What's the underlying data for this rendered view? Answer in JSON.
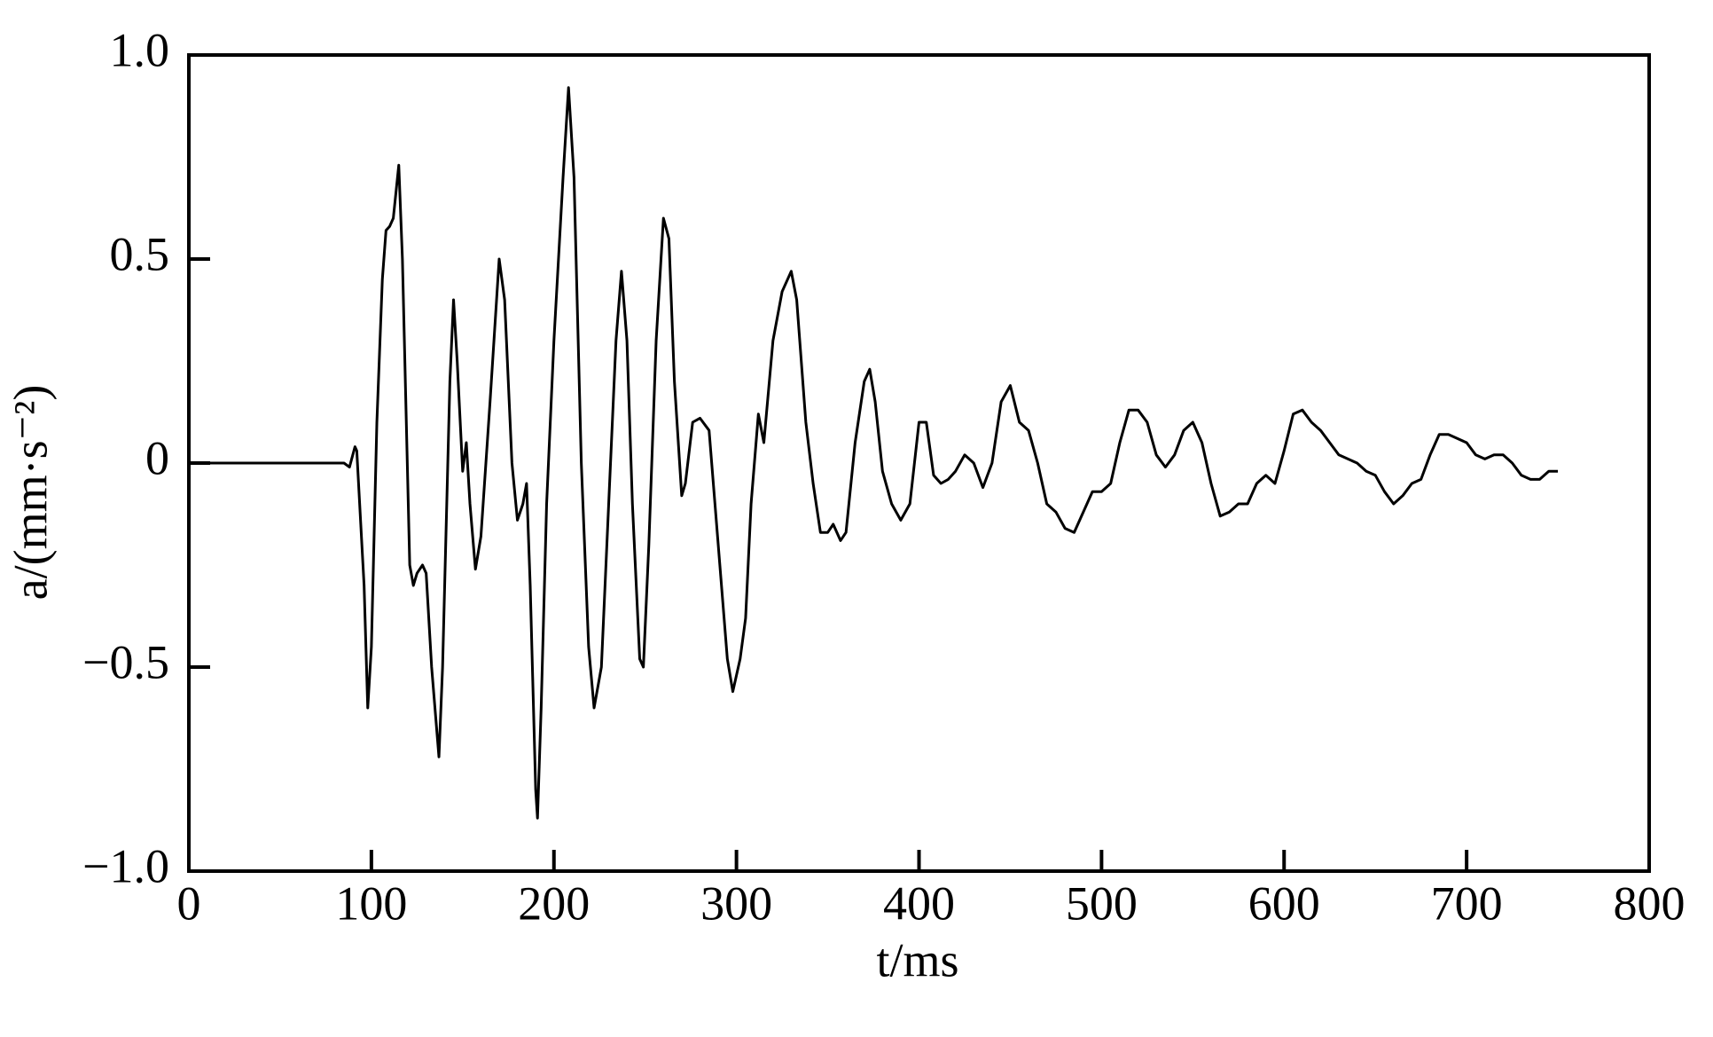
{
  "chart_data": {
    "type": "line",
    "xlabel": "t/ms",
    "ylabel": "a/(mm·s⁻²)",
    "xlim": [
      0,
      800
    ],
    "xticks": [
      0,
      100,
      200,
      300,
      400,
      500,
      600,
      700,
      800
    ],
    "ylim": [
      -1,
      1
    ],
    "yticks": [
      {
        "value": -1,
        "label": "−1.0"
      },
      {
        "value": -0.5,
        "label": "−0.5"
      },
      0,
      0.5,
      {
        "value": 1,
        "label": "1.0"
      }
    ],
    "grid": false,
    "series": [
      {
        "color": "#000000",
        "x": [
          0,
          10,
          50,
          85,
          88,
          91,
          92,
          96,
          98,
          100,
          103,
          106,
          108,
          110,
          112,
          115,
          117,
          121,
          123,
          125,
          128,
          130,
          133,
          137,
          139,
          143,
          145,
          147,
          150,
          152,
          154,
          157,
          160,
          165,
          170,
          173,
          177,
          180,
          183,
          185,
          187,
          190,
          191,
          193,
          196,
          200,
          205,
          208,
          211,
          215,
          219,
          222,
          226,
          230,
          234,
          237,
          240,
          243,
          247,
          249,
          252,
          256,
          260,
          263,
          266,
          270,
          272,
          276,
          280,
          285,
          290,
          295,
          298,
          302,
          305,
          308,
          312,
          315,
          320,
          325,
          330,
          333,
          338,
          342,
          346,
          350,
          353,
          357,
          360,
          365,
          370,
          373,
          376,
          380,
          385,
          390,
          395,
          400,
          404,
          408,
          412,
          416,
          420,
          425,
          430,
          435,
          440,
          445,
          450,
          455,
          460,
          465,
          470,
          475,
          480,
          485,
          490,
          495,
          500,
          505,
          510,
          515,
          520,
          525,
          530,
          535,
          540,
          545,
          550,
          555,
          560,
          565,
          570,
          575,
          580,
          585,
          590,
          595,
          600,
          605,
          610,
          615,
          620,
          625,
          630,
          635,
          640,
          645,
          650,
          655,
          660,
          665,
          670,
          675,
          680,
          685,
          690,
          695,
          700,
          705,
          710,
          715,
          720,
          725,
          730,
          735,
          740,
          745,
          750
        ],
        "values": [
          0,
          0,
          0,
          0,
          -0.01,
          0.04,
          0.03,
          -0.3,
          -0.6,
          -0.45,
          0.1,
          0.45,
          0.57,
          0.58,
          0.6,
          0.73,
          0.5,
          -0.25,
          -0.3,
          -0.27,
          -0.25,
          -0.27,
          -0.5,
          -0.72,
          -0.5,
          0.2,
          0.4,
          0.25,
          -0.02,
          0.05,
          -0.1,
          -0.26,
          -0.18,
          0.15,
          0.5,
          0.4,
          0,
          -0.14,
          -0.1,
          -0.05,
          -0.3,
          -0.8,
          -0.87,
          -0.6,
          -0.1,
          0.3,
          0.7,
          0.92,
          0.7,
          0,
          -0.45,
          -0.6,
          -0.5,
          -0.1,
          0.3,
          0.47,
          0.3,
          -0.1,
          -0.48,
          -0.5,
          -0.2,
          0.3,
          0.6,
          0.55,
          0.2,
          -0.08,
          -0.05,
          0.1,
          0.11,
          0.08,
          -0.2,
          -0.48,
          -0.56,
          -0.48,
          -0.38,
          -0.1,
          0.12,
          0.05,
          0.3,
          0.42,
          0.47,
          0.4,
          0.1,
          -0.05,
          -0.17,
          -0.17,
          -0.15,
          -0.19,
          -0.17,
          0.05,
          0.2,
          0.23,
          0.15,
          -0.02,
          -0.1,
          -0.14,
          -0.1,
          0.1,
          0.1,
          -0.03,
          -0.05,
          -0.04,
          -0.02,
          0.02,
          0,
          -0.06,
          0,
          0.15,
          0.19,
          0.1,
          0.08,
          0,
          -0.1,
          -0.12,
          -0.16,
          -0.17,
          -0.12,
          -0.07,
          -0.07,
          -0.05,
          0.05,
          0.13,
          0.13,
          0.1,
          0.02,
          -0.01,
          0.02,
          0.08,
          0.1,
          0.05,
          -0.05,
          -0.13,
          -0.12,
          -0.1,
          -0.1,
          -0.05,
          -0.03,
          -0.05,
          0.03,
          0.12,
          0.13,
          0.1,
          0.08,
          0.05,
          0.02,
          0.01,
          0,
          -0.02,
          -0.03,
          -0.07,
          -0.1,
          -0.08,
          -0.05,
          -0.04,
          0.02,
          0.07,
          0.07,
          0.06,
          0.05,
          0.02,
          0.01,
          0.02,
          0.02,
          0,
          -0.03,
          -0.04,
          -0.04,
          -0.02,
          -0.02
        ]
      }
    ]
  }
}
